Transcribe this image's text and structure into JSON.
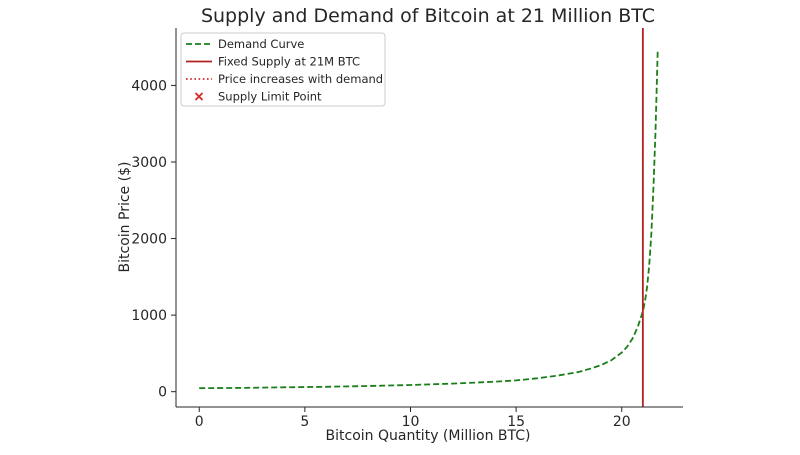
{
  "chart_data": {
    "type": "line",
    "title": "Supply and Demand of Bitcoin at 21 Million BTC",
    "xlabel": "Bitcoin Quantity (Million BTC)",
    "ylabel": "Bitcoin Price ($)",
    "xlim": [
      -1.1,
      22.9
    ],
    "ylim": [
      -200,
      4750
    ],
    "xticks": [
      0,
      5,
      10,
      15,
      20
    ],
    "yticks": [
      0,
      1000,
      2000,
      3000,
      4000
    ],
    "grid": false,
    "legend_position": "top-left",
    "series": [
      {
        "name": "Demand Curve",
        "style": "dashed",
        "color": "#1a7f1a",
        "x": [
          0,
          2,
          4,
          6,
          8,
          10,
          12,
          14,
          15,
          16,
          17,
          18,
          18.5,
          19,
          19.5,
          20,
          20.25,
          20.5,
          20.75,
          21,
          21.1,
          21.2,
          21.3,
          21.4,
          21.5,
          21.6,
          21.7
        ],
        "y": [
          45,
          50,
          57,
          64,
          74,
          87,
          105,
          130,
          148,
          175,
          212,
          260,
          300,
          345,
          410,
          510,
          585,
          690,
          840,
          1050,
          1180,
          1370,
          1650,
          2050,
          2650,
          3400,
          4450
        ]
      },
      {
        "name": "Fixed Supply at 21M BTC",
        "style": "solid",
        "color": "#b22222",
        "x": [
          21,
          21
        ],
        "y": [
          -200,
          4750
        ]
      },
      {
        "name": "Price increases with demand",
        "style": "dotted",
        "color": "#d62728",
        "x": [],
        "y": []
      },
      {
        "name": "Supply Limit Point",
        "style": "marker-x",
        "color": "#d62728",
        "x": [],
        "y": []
      }
    ]
  }
}
